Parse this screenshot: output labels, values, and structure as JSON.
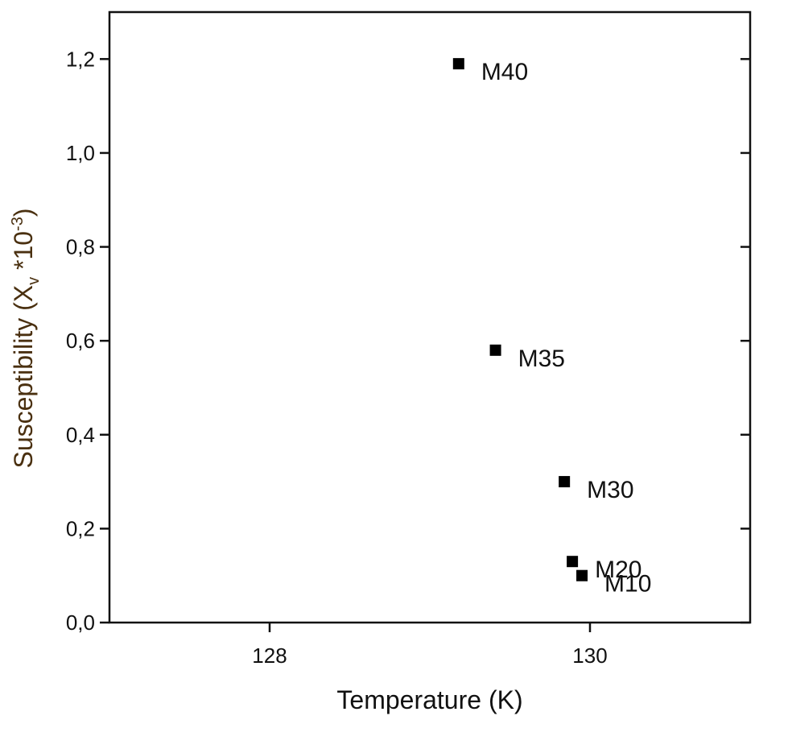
{
  "chart_data": {
    "type": "scatter",
    "xlabel": "Temperature (K)",
    "ylabel": {
      "text": "Susceptibility  (X",
      "sub": "v",
      "mid": " *10",
      "sup": "-3",
      "end": ")"
    },
    "xlim": [
      127,
      131
    ],
    "xticks": [
      128,
      130
    ],
    "ylim": [
      0,
      1.3
    ],
    "yticks": [
      {
        "value": 0,
        "label": "0,0"
      },
      {
        "value": 0.2,
        "label": "0,2"
      },
      {
        "value": 0.4,
        "label": "0,4"
      },
      {
        "value": 0.6,
        "label": "0,6"
      },
      {
        "value": 0.8,
        "label": "0,8"
      },
      {
        "value": 1.0,
        "label": "1,0"
      },
      {
        "value": 1.2,
        "label": "1,2"
      }
    ],
    "series": [
      {
        "color": "#000000",
        "x": [
          129.18,
          129.41,
          129.84,
          129.89,
          129.95
        ],
        "values": [
          1.19,
          0.58,
          0.3,
          0.13,
          0.1
        ],
        "point_labels": [
          "M40",
          "M35",
          "M30",
          "M20",
          "M10"
        ]
      }
    ]
  }
}
